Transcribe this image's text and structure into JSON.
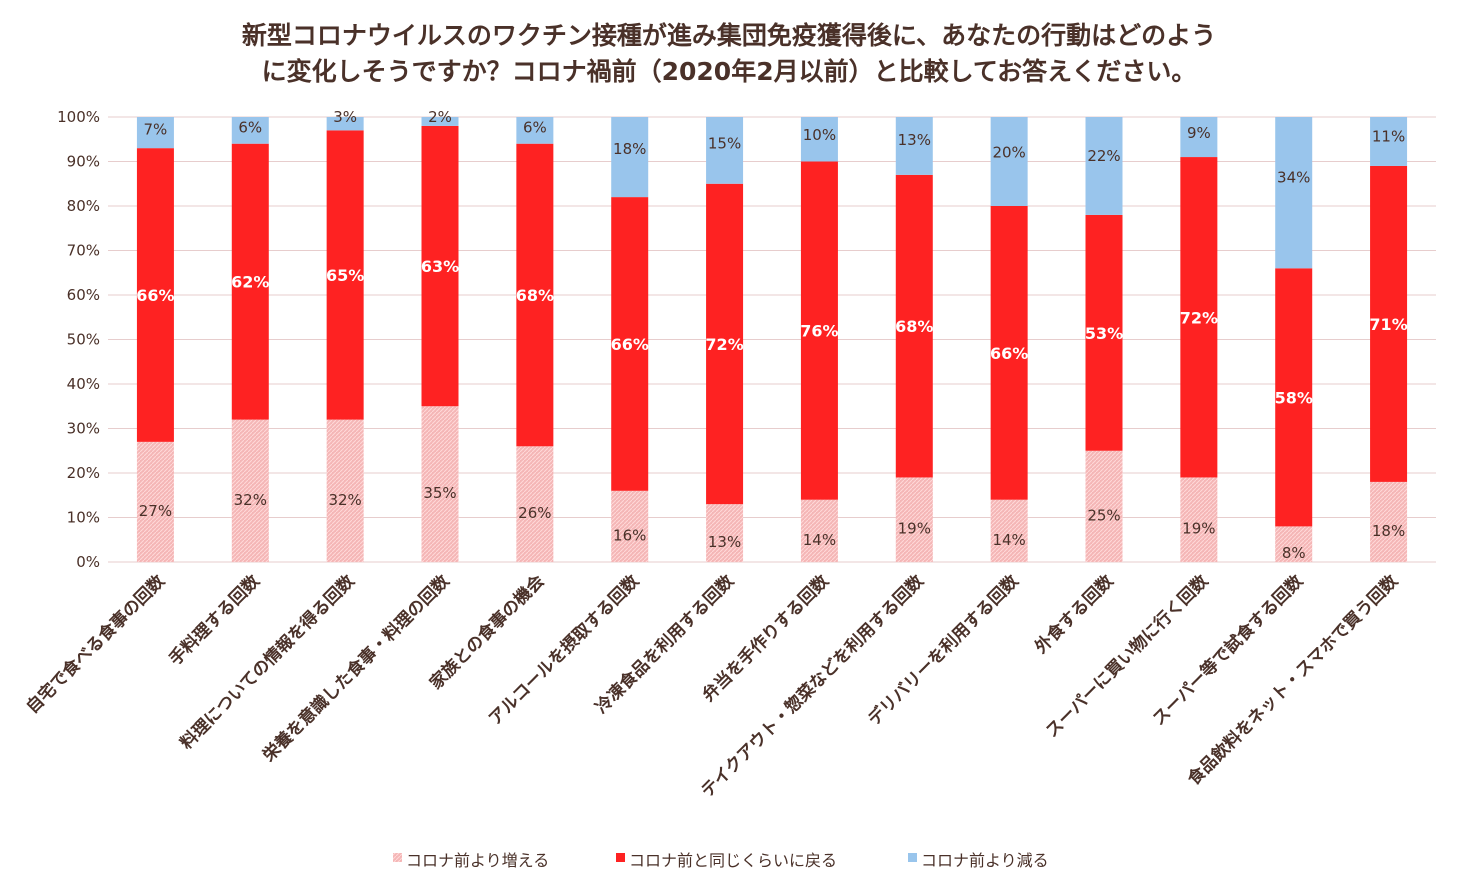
{
  "chart_data": {
    "type": "bar",
    "stacked": true,
    "percent": true,
    "title_lines": [
      "新型コロナウイルスのワクチン接種が進み集団免疫獲得後に、あなたの行動はどのよう",
      "に変化しそうですか？コロナ禍前（2020年2月以前）と比較してお答えください。"
    ],
    "categories": [
      "自宅で食べる食事の回数",
      "手料理する回数",
      "料理についての情報を得る回数",
      "栄養を意識した食事・料理の回数",
      "家族との食事の機会",
      "アルコールを摂取する回数",
      "冷凍食品を利用する回数",
      "弁当を手作りする回数",
      "テイクアウト・惣菜などを利用する回数",
      "デリバリーを利用する回数",
      "外食する回数",
      "スーパーに買い物に行く回数",
      "スーパー等で試食する回数",
      "食品飲料をネット・スマホで買う回数"
    ],
    "series": [
      {
        "name": "コロナ前より増える",
        "color": "#f4b6b6",
        "values": [
          27,
          32,
          32,
          35,
          26,
          16,
          13,
          14,
          19,
          14,
          25,
          19,
          8,
          18
        ],
        "labels": [
          "27%",
          "32%",
          "32%",
          "35%",
          "26%",
          "16%",
          "13%",
          "14%",
          "19%",
          "14%",
          "25%",
          "19%",
          "8%",
          "18%"
        ]
      },
      {
        "name": "コロナ前と同じくらいに戻る",
        "color": "#fe2222",
        "values": [
          66,
          62,
          65,
          63,
          68,
          66,
          72,
          76,
          68,
          66,
          53,
          72,
          58,
          71
        ],
        "labels": [
          "66%",
          "62%",
          "65%",
          "63%",
          "68%",
          "66%",
          "72%",
          "76%",
          "68%",
          "66%",
          "53%",
          "72%",
          "58%",
          "71%"
        ]
      },
      {
        "name": "コロナ前より減る",
        "color": "#99c5ec",
        "values": [
          7,
          6,
          3,
          2,
          6,
          18,
          15,
          10,
          13,
          20,
          22,
          9,
          34,
          11
        ],
        "labels": [
          "7%",
          "6%",
          "3%",
          "2%",
          "6%",
          "18%",
          "15%",
          "10%",
          "13%",
          "20%",
          "22%",
          "9%",
          "34%",
          "11%"
        ]
      }
    ],
    "y_ticks": [
      "0%",
      "10%",
      "20%",
      "30%",
      "40%",
      "50%",
      "60%",
      "70%",
      "80%",
      "90%",
      "100%"
    ],
    "ylim": [
      0,
      100
    ],
    "grid": true,
    "legend_position": "bottom",
    "colors": {
      "text": "#4a3129",
      "grid": "#e7cdcd",
      "mid_label": "#ffffff"
    }
  }
}
